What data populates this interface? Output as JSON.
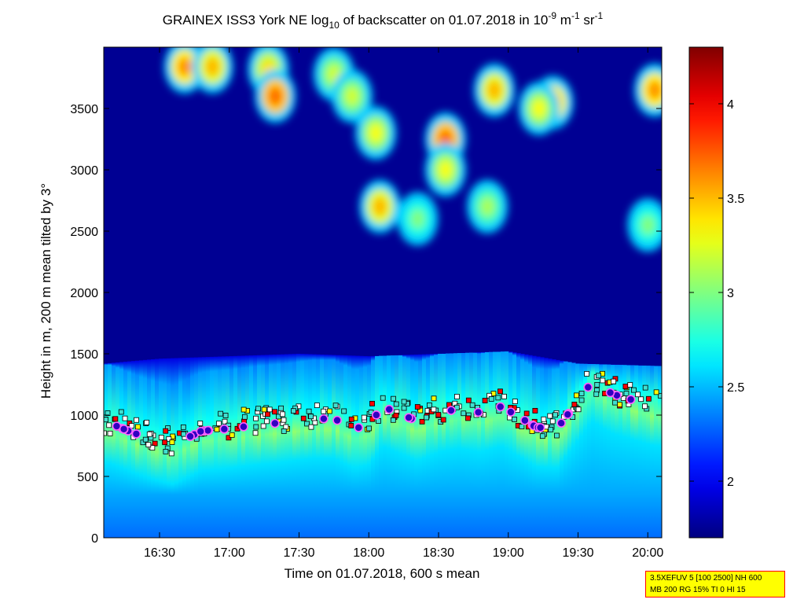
{
  "chart_data": {
    "type": "heatmap",
    "title": {
      "prefix": "GRAINEX ISS3 York NE log",
      "sub": "10",
      "middle": " of backscatter on 01.07.2018 in 10",
      "sup1": "-9",
      "mid2": " m",
      "sup2": "-1",
      "mid3": " sr",
      "sup3": "-1"
    },
    "xlabel": "Time on 01.07.2018, 600 s mean",
    "ylabel": "Height in m, 200 m mean tilted by 3°",
    "x_range_hours": [
      16.1,
      20.1
    ],
    "xticks": [
      {
        "v": 16.5,
        "label": "16:30"
      },
      {
        "v": 17.0,
        "label": "17:00"
      },
      {
        "v": 17.5,
        "label": "17:30"
      },
      {
        "v": 18.0,
        "label": "18:00"
      },
      {
        "v": 18.5,
        "label": "18:30"
      },
      {
        "v": 19.0,
        "label": "19:00"
      },
      {
        "v": 19.5,
        "label": "19:30"
      },
      {
        "v": 20.0,
        "label": "20:00"
      }
    ],
    "ylim": [
      0,
      4000
    ],
    "yticks": [
      0,
      500,
      1000,
      1500,
      2000,
      2500,
      3000,
      3500
    ],
    "colorbar": {
      "range": [
        1.7,
        4.3
      ],
      "ticks": [
        {
          "v": 2,
          "label": "2"
        },
        {
          "v": 2.5,
          "label": "2.5"
        },
        {
          "v": 3,
          "label": "3"
        },
        {
          "v": 3.5,
          "label": "3.5"
        },
        {
          "v": 4,
          "label": "4"
        }
      ]
    },
    "boundary_layer_top_m": [
      [
        16.1,
        1420
      ],
      [
        16.5,
        1460
      ],
      [
        17.0,
        1480
      ],
      [
        17.5,
        1500
      ],
      [
        18.0,
        1480
      ],
      [
        18.5,
        1500
      ],
      [
        19.0,
        1520
      ],
      [
        19.5,
        1420
      ],
      [
        20.1,
        1400
      ]
    ],
    "aerosol_layer_heights": [
      [
        16.15,
        960
      ],
      [
        16.3,
        890
      ],
      [
        16.45,
        830
      ],
      [
        16.6,
        790
      ],
      [
        16.8,
        900
      ],
      [
        17.0,
        920
      ],
      [
        17.2,
        950
      ],
      [
        17.4,
        970
      ],
      [
        17.6,
        1000
      ],
      [
        17.75,
        1000
      ],
      [
        17.9,
        920
      ],
      [
        18.0,
        950
      ],
      [
        18.1,
        1100
      ],
      [
        18.2,
        1050
      ],
      [
        18.35,
        980
      ],
      [
        18.5,
        1050
      ],
      [
        18.65,
        1080
      ],
      [
        18.8,
        1050
      ],
      [
        18.95,
        1100
      ],
      [
        19.1,
        1000
      ],
      [
        19.2,
        930
      ],
      [
        19.35,
        920
      ],
      [
        19.6,
        1300
      ],
      [
        19.75,
        1200
      ],
      [
        19.9,
        1150
      ],
      [
        20.05,
        1100
      ]
    ],
    "cloud_patches": [
      {
        "t": 16.68,
        "h": 3840,
        "value": 3.6
      },
      {
        "t": 16.88,
        "h": 3840,
        "value": 3.5
      },
      {
        "t": 17.28,
        "h": 3820,
        "value": 3.4
      },
      {
        "t": 17.33,
        "h": 3600,
        "value": 3.7
      },
      {
        "t": 17.75,
        "h": 3780,
        "value": 3.2
      },
      {
        "t": 17.88,
        "h": 3600,
        "value": 3.2
      },
      {
        "t": 18.05,
        "h": 3300,
        "value": 3.3
      },
      {
        "t": 18.08,
        "h": 2700,
        "value": 3.5
      },
      {
        "t": 18.35,
        "h": 2600,
        "value": 3.0
      },
      {
        "t": 18.55,
        "h": 3250,
        "value": 3.7
      },
      {
        "t": 18.55,
        "h": 3000,
        "value": 3.3
      },
      {
        "t": 18.9,
        "h": 3650,
        "value": 3.5
      },
      {
        "t": 18.85,
        "h": 2700,
        "value": 3.1
      },
      {
        "t": 19.32,
        "h": 3550,
        "value": 3.6
      },
      {
        "t": 19.22,
        "h": 3500,
        "value": 3.3
      },
      {
        "t": 20.05,
        "h": 3650,
        "value": 3.6
      },
      {
        "t": 20.0,
        "h": 2550,
        "value": 3.0
      }
    ]
  },
  "info_box": {
    "line1": "3.5XEFUV 5 [100 2500] NH 600",
    "line2": "MB 200 RG 15% TI 0 HI 15"
  }
}
